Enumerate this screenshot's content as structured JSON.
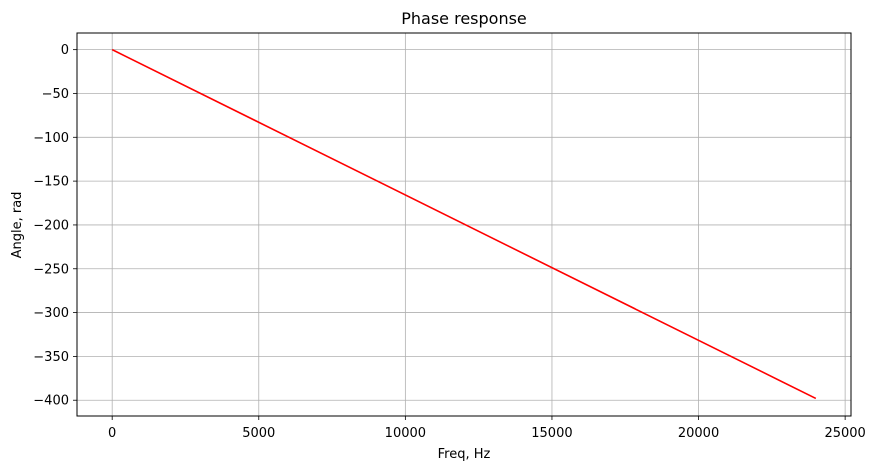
{
  "chart_data": {
    "type": "line",
    "title": "Phase response",
    "xlabel": "Freq, Hz",
    "ylabel": "Angle, rad",
    "xlim": [
      -1200,
      25200
    ],
    "ylim": [
      -418,
      19
    ],
    "grid": true,
    "xticks": [
      0,
      5000,
      10000,
      15000,
      20000,
      25000
    ],
    "xtick_labels": [
      "0",
      "5000",
      "10000",
      "15000",
      "20000",
      "25000"
    ],
    "yticks": [
      0,
      -50,
      -100,
      -150,
      -200,
      -250,
      -300,
      -350,
      -400
    ],
    "ytick_labels": [
      "0",
      "−50",
      "−100",
      "−150",
      "−200",
      "−250",
      "−300",
      "−350",
      "−400"
    ],
    "series": [
      {
        "color": "#ff0000",
        "x": [
          0,
          24000
        ],
        "y": [
          0,
          -398
        ]
      }
    ],
    "colors": {
      "grid": "#b0b0b0",
      "axes": "#000000"
    }
  }
}
